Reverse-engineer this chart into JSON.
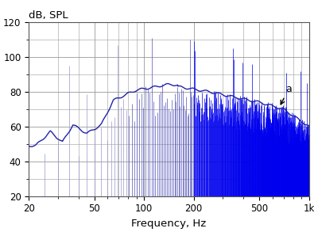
{
  "ylabel": "dB, SPL",
  "xlabel": "Frequency, Hz",
  "annotation_label": "a",
  "xlim": [
    20,
    1000
  ],
  "ylim": [
    20,
    120
  ],
  "xticks": [
    20,
    50,
    100,
    200,
    500,
    1000
  ],
  "xticklabels": [
    "20",
    "50",
    "100",
    "200",
    "500",
    "1k"
  ],
  "yticks": [
    20,
    40,
    60,
    80,
    100,
    120
  ],
  "envelope_color": "#2222aa",
  "bar_color_dark_blue": "#0000ee",
  "bar_color_mid_blue": "#5555bb",
  "bar_color_light_blue": "#9999cc",
  "background_color": "#ffffff",
  "grid_color": "#999999"
}
